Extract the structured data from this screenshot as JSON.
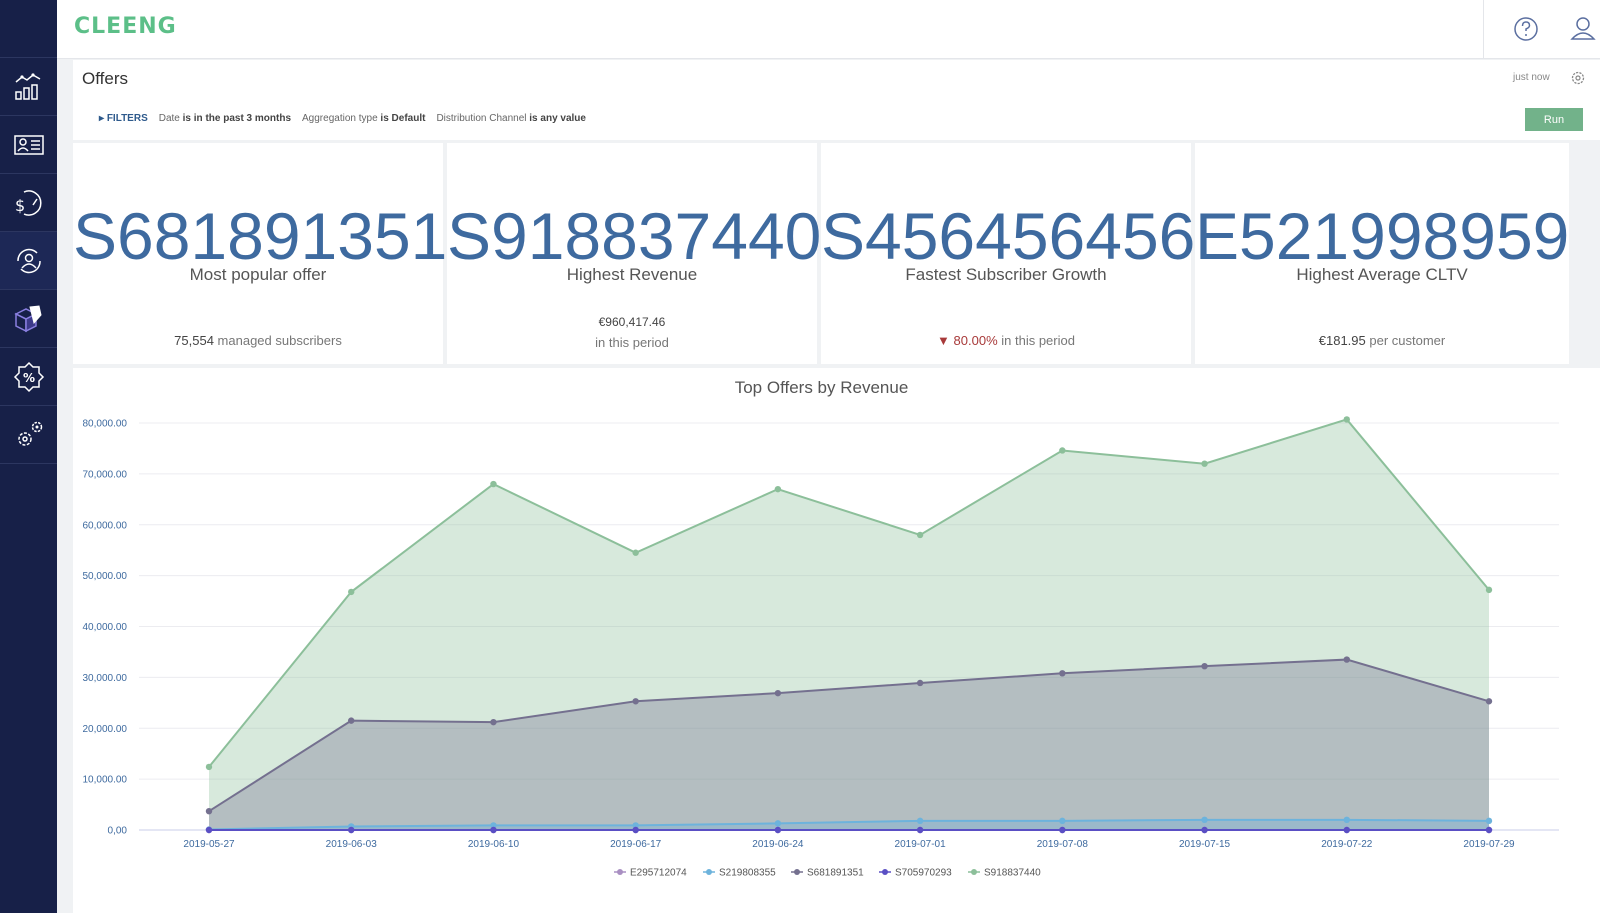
{
  "app": {
    "logo": "CLEENG"
  },
  "sidebar": {
    "items": [
      {
        "icon": "analytics-chart-icon"
      },
      {
        "icon": "customer-list-icon"
      },
      {
        "icon": "revenue-gauge-icon"
      },
      {
        "icon": "subscriber-cycle-icon",
        "active": true
      },
      {
        "icon": "offer-box-icon"
      },
      {
        "icon": "discount-badge-icon"
      },
      {
        "icon": "settings-gears-icon"
      }
    ]
  },
  "header": {
    "title": "Offers",
    "updated": "just now",
    "filters": {
      "toggle": "FILTERS",
      "items": [
        {
          "field": "Date",
          "op": "is in the past 3 months"
        },
        {
          "field": "Aggregation type",
          "op": "is Default"
        },
        {
          "field": "Distribution Channel",
          "op": "is any value"
        }
      ]
    },
    "run_label": "Run"
  },
  "cards": [
    {
      "value": "S681891351",
      "label": "Most popular offer",
      "sub_strong": "75,554",
      "sub_text": "managed subscribers"
    },
    {
      "value": "S918837440",
      "label": "Highest Revenue",
      "line1": "€960,417.46",
      "line2": "in this period"
    },
    {
      "value": "S456456456",
      "label": "Fastest Subscriber Growth",
      "sub_strong": "80.00%",
      "sub_text": "in this period"
    },
    {
      "value": "E521998959",
      "label": "Highest Average CLTV",
      "sub_strong": "€181.95",
      "sub_text": "per customer"
    }
  ],
  "chart_data": {
    "type": "area",
    "title": "Top Offers by Revenue",
    "x": [
      "2019-05-27",
      "2019-06-03",
      "2019-06-10",
      "2019-06-17",
      "2019-06-24",
      "2019-07-01",
      "2019-07-08",
      "2019-07-15",
      "2019-07-22",
      "2019-07-29"
    ],
    "yticks": [
      "0,00",
      "10,000.00",
      "20,000.00",
      "30,000.00",
      "40,000.00",
      "50,000.00",
      "60,000.00",
      "70,000.00",
      "80,000.00"
    ],
    "ylim": [
      0,
      80000
    ],
    "series": [
      {
        "name": "E295712074",
        "color": "#a98fc2",
        "values": [
          0,
          0,
          0,
          0,
          0,
          0,
          0,
          0,
          0,
          0
        ]
      },
      {
        "name": "S219808355",
        "color": "#6db3dc",
        "values": [
          100,
          700,
          900,
          900,
          1300,
          1800,
          1800,
          2000,
          2000,
          1800
        ]
      },
      {
        "name": "S681891351",
        "color": "#74708f",
        "values": [
          3700,
          21500,
          21200,
          25300,
          26900,
          28900,
          30800,
          32200,
          33500,
          25300
        ]
      },
      {
        "name": "S705970293",
        "color": "#5a4fc4",
        "values": [
          0,
          0,
          0,
          0,
          0,
          0,
          0,
          0,
          0,
          0
        ]
      },
      {
        "name": "S918837440",
        "color": "#8cbf9a",
        "values": [
          12400,
          46800,
          68000,
          54500,
          67000,
          58000,
          74600,
          72000,
          80700,
          47200
        ]
      }
    ],
    "grid": true,
    "legend": "bottom"
  }
}
